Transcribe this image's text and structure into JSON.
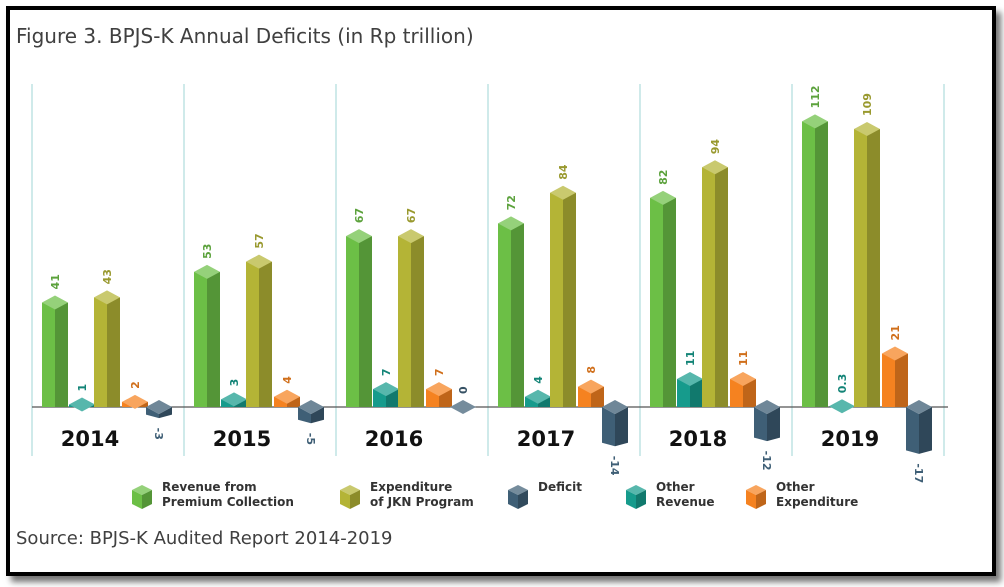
{
  "title": "Figure 3. BPJS-K Annual Deficits (in Rp trillion)",
  "source": "Source: BPJS-K Audited Report 2014-2019",
  "colors": {
    "revenue": "#6cbf46",
    "expenditure": "#b4b436",
    "deficit": "#3f5f76",
    "other_revenue": "#169b8c",
    "other_expenditure": "#f58220",
    "grid": "#bfe3e3",
    "axis": "#555555"
  },
  "legend": [
    {
      "label": "Revenue from\nPremium Collection",
      "color_key": "revenue"
    },
    {
      "label": "Expenditure\nof JKN Program",
      "color_key": "expenditure"
    },
    {
      "label": "Deficit",
      "color_key": "deficit"
    },
    {
      "label": "Other\nRevenue",
      "color_key": "other_revenue"
    },
    {
      "label": "Other\nExpenditure",
      "color_key": "other_expenditure"
    }
  ],
  "chart_data": {
    "type": "bar",
    "title": "Figure 3. BPJS-K Annual Deficits (in Rp trillion)",
    "categories": [
      "2014",
      "2015",
      "2016",
      "2017",
      "2018",
      "2019"
    ],
    "series": [
      {
        "name": "Revenue from Premium Collection",
        "color_key": "revenue",
        "values": [
          41,
          53,
          67,
          72,
          82,
          112
        ],
        "labels": [
          "41",
          "53",
          "67",
          "72",
          "82",
          "112"
        ]
      },
      {
        "name": "Other Revenue",
        "color_key": "other_revenue",
        "values": [
          1,
          3,
          7,
          4,
          11,
          0.3
        ],
        "labels": [
          "1",
          "3",
          "7",
          "4",
          "11",
          "0.3"
        ]
      },
      {
        "name": "Expenditure of JKN Program",
        "color_key": "expenditure",
        "values": [
          43,
          57,
          67,
          84,
          94,
          109
        ],
        "labels": [
          "43",
          "57",
          "67",
          "84",
          "94",
          "109"
        ]
      },
      {
        "name": "Other Expenditure",
        "color_key": "other_expenditure",
        "values": [
          2,
          4,
          7,
          8,
          11,
          21
        ],
        "labels": [
          "2",
          "4",
          "7",
          "8",
          "11",
          "21"
        ]
      },
      {
        "name": "Deficit",
        "color_key": "deficit",
        "values": [
          -3,
          -5,
          0,
          -14,
          -12,
          -17
        ],
        "labels": [
          "-3",
          "-5",
          "0",
          "-14",
          "-12",
          "-17"
        ]
      }
    ],
    "grid": true,
    "legend_position": "bottom"
  }
}
